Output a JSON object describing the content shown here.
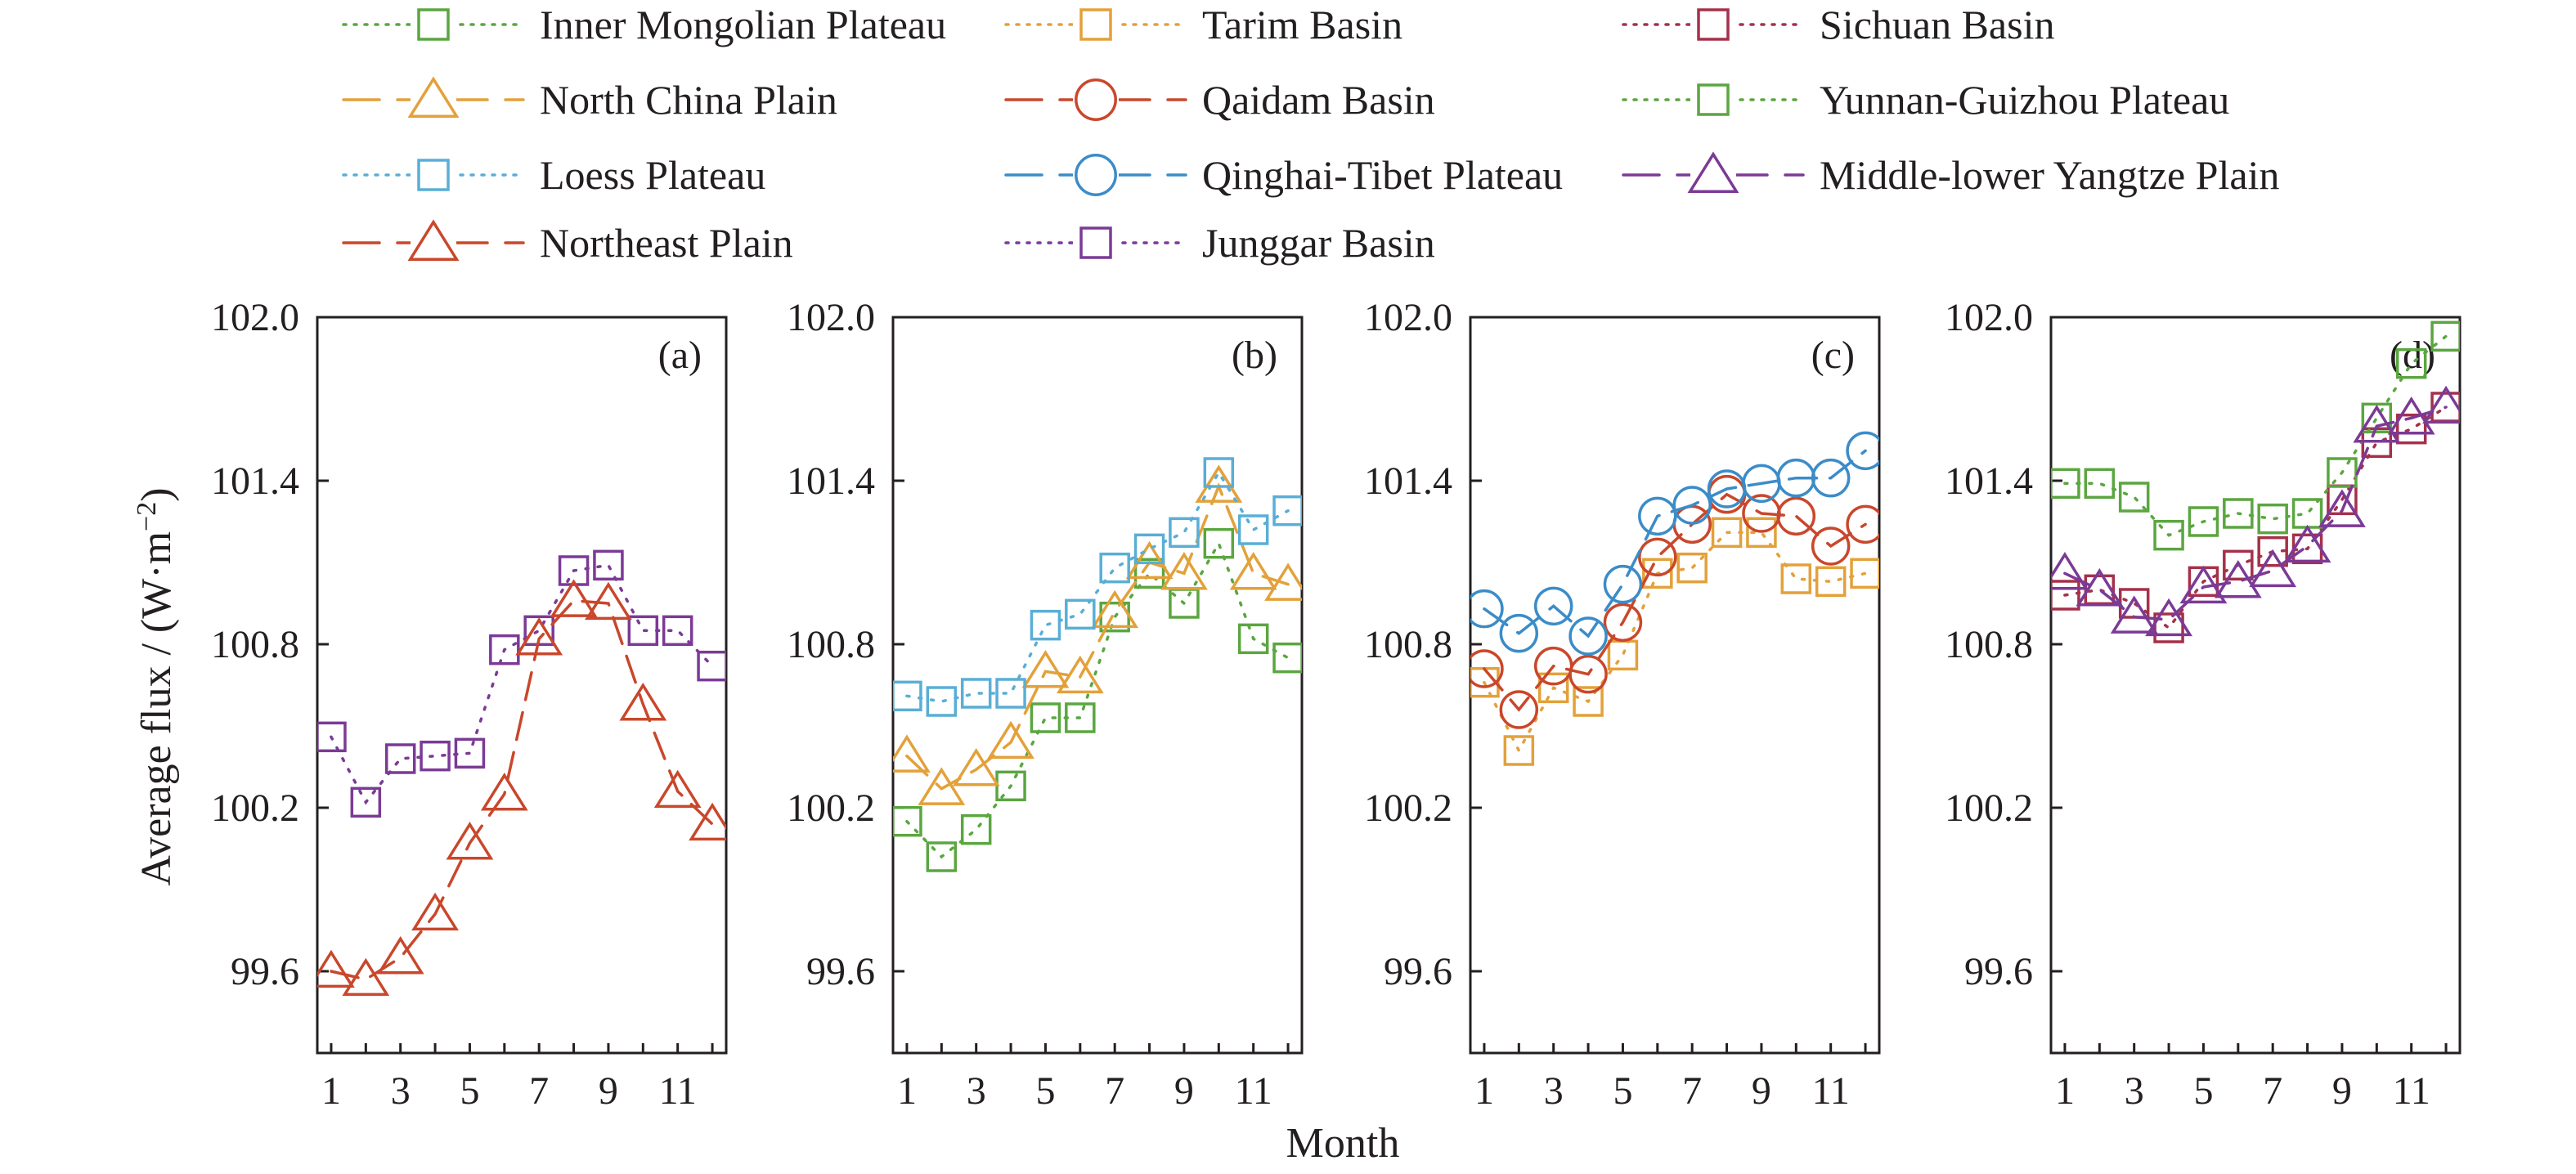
{
  "chart_data": {
    "type": "line",
    "ylabel_main": "Average flux / (W·m",
    "ylabel_exp": "−2",
    "ylabel_close": ")",
    "xlabel": "Month",
    "ylim": [
      99.3,
      102.0
    ],
    "xlim": [
      0.6,
      12.4
    ],
    "yticks": [
      "102.0",
      "101.4",
      "100.8",
      "100.2",
      "99.6"
    ],
    "xticks": [
      "1",
      "3",
      "5",
      "7",
      "9",
      "11"
    ],
    "panels": [
      {
        "label": "(a)",
        "series": [
          {
            "name": "Junggar Basin",
            "color": "#7b3a96",
            "marker": "square",
            "dash": "dot",
            "x": [
              1,
              2,
              3,
              4,
              5,
              6,
              7,
              8,
              9,
              10,
              11,
              12
            ],
            "y": [
              100.46,
              100.22,
              100.38,
              100.39,
              100.4,
              100.78,
              100.85,
              101.07,
              101.09,
              100.85,
              100.85,
              100.72
            ]
          },
          {
            "name": "Northeast Plain",
            "color": "#c9472b",
            "marker": "triangle",
            "dash": "dash",
            "x": [
              1,
              2,
              3,
              4,
              5,
              6,
              7,
              8,
              9,
              10,
              11,
              12
            ],
            "y": [
              99.6,
              99.57,
              99.65,
              99.81,
              100.07,
              100.25,
              100.82,
              100.96,
              100.95,
              100.58,
              100.26,
              100.14
            ]
          }
        ]
      },
      {
        "label": "(b)",
        "series": [
          {
            "name": "Inner Mongolian Plateau",
            "color": "#5aa640",
            "marker": "square",
            "dash": "dot",
            "x": [
              1,
              2,
              3,
              4,
              5,
              6,
              7,
              8,
              9,
              10,
              11,
              12
            ],
            "y": [
              100.15,
              100.02,
              100.12,
              100.28,
              100.53,
              100.53,
              100.9,
              101.06,
              100.95,
              101.17,
              100.82,
              100.75
            ]
          },
          {
            "name": "North China Plain",
            "color": "#e3a13a",
            "marker": "triangle",
            "dash": "dash",
            "x": [
              1,
              2,
              3,
              4,
              5,
              6,
              7,
              8,
              9,
              10,
              11,
              12
            ],
            "y": [
              100.39,
              100.27,
              100.34,
              100.44,
              100.7,
              100.68,
              100.92,
              101.1,
              101.06,
              101.38,
              101.06,
              101.02
            ]
          },
          {
            "name": "Loess Plateau",
            "color": "#5aaed6",
            "marker": "square",
            "dash": "dot",
            "x": [
              1,
              2,
              3,
              4,
              5,
              6,
              7,
              8,
              9,
              10,
              11,
              12
            ],
            "y": [
              100.61,
              100.59,
              100.62,
              100.62,
              100.87,
              100.91,
              101.08,
              101.15,
              101.21,
              101.43,
              101.22,
              101.29
            ]
          }
        ]
      },
      {
        "label": "(c)",
        "series": [
          {
            "name": "Tarim Basin",
            "color": "#e3a13a",
            "marker": "square",
            "dash": "dot",
            "x": [
              1,
              2,
              3,
              4,
              5,
              6,
              7,
              8,
              9,
              10,
              11,
              12
            ],
            "y": [
              100.66,
              100.41,
              100.64,
              100.59,
              100.76,
              101.06,
              101.08,
              101.21,
              101.21,
              101.04,
              101.03,
              101.06
            ]
          },
          {
            "name": "Qaidam Basin",
            "color": "#c9472b",
            "marker": "circle",
            "dash": "dash",
            "x": [
              1,
              2,
              3,
              4,
              5,
              6,
              7,
              8,
              9,
              10,
              11,
              12
            ],
            "y": [
              100.71,
              100.56,
              100.72,
              100.69,
              100.88,
              101.12,
              101.24,
              101.35,
              101.28,
              101.27,
              101.16,
              101.24
            ]
          },
          {
            "name": "Qinghai-Tibet Plateau",
            "color": "#3b8cc8",
            "marker": "circle",
            "dash": "dash",
            "x": [
              1,
              2,
              3,
              4,
              5,
              6,
              7,
              8,
              9,
              10,
              11,
              12
            ],
            "y": [
              100.93,
              100.84,
              100.94,
              100.83,
              101.02,
              101.27,
              101.31,
              101.37,
              101.39,
              101.41,
              101.41,
              101.51
            ]
          }
        ]
      },
      {
        "label": "(d)",
        "series": [
          {
            "name": "Sichuan Basin",
            "color": "#a5304a",
            "marker": "square",
            "dash": "dot",
            "x": [
              1,
              2,
              3,
              4,
              5,
              6,
              7,
              8,
              9,
              10,
              11,
              12
            ],
            "y": [
              100.98,
              101.0,
              100.95,
              100.86,
              101.03,
              101.09,
              101.14,
              101.15,
              101.33,
              101.54,
              101.59,
              101.67
            ]
          },
          {
            "name": "Yunnan-Guizhou Plateau",
            "color": "#5aa640",
            "marker": "square",
            "dash": "dot",
            "x": [
              1,
              2,
              3,
              4,
              5,
              6,
              7,
              8,
              9,
              10,
              11,
              12
            ],
            "y": [
              101.39,
              101.39,
              101.34,
              101.2,
              101.25,
              101.28,
              101.26,
              101.28,
              101.43,
              101.63,
              101.83,
              101.93
            ]
          },
          {
            "name": "Middle-lower Yangtze Plain",
            "color": "#7b3a96",
            "marker": "triangle",
            "dash": "dash",
            "x": [
              1,
              2,
              3,
              4,
              5,
              6,
              7,
              8,
              9,
              10,
              11,
              12
            ],
            "y": [
              101.06,
              101.0,
              100.9,
              100.89,
              101.01,
              101.03,
              101.07,
              101.16,
              101.29,
              101.6,
              101.63,
              101.67
            ]
          }
        ]
      }
    ],
    "legend": [
      {
        "name": "Inner Mongolian Plateau",
        "color": "#5aa640",
        "marker": "square",
        "dash": "dot"
      },
      {
        "name": "Tarim Basin",
        "color": "#e3a13a",
        "marker": "square",
        "dash": "dot"
      },
      {
        "name": "Sichuan Basin",
        "color": "#a5304a",
        "marker": "square",
        "dash": "dot"
      },
      {
        "name": "North China Plain",
        "color": "#e3a13a",
        "marker": "triangle",
        "dash": "dash"
      },
      {
        "name": "Qaidam Basin",
        "color": "#c9472b",
        "marker": "circle",
        "dash": "dash"
      },
      {
        "name": "Yunnan-Guizhou Plateau",
        "color": "#5aa640",
        "marker": "square",
        "dash": "dot"
      },
      {
        "name": "Loess Plateau",
        "color": "#5aaed6",
        "marker": "square",
        "dash": "dot"
      },
      {
        "name": "Qinghai-Tibet Plateau",
        "color": "#3b8cc8",
        "marker": "circle",
        "dash": "dash"
      },
      {
        "name": "Middle-lower Yangtze Plain",
        "color": "#7b3a96",
        "marker": "triangle",
        "dash": "dash"
      },
      {
        "name": "Northeast Plain",
        "color": "#c9472b",
        "marker": "triangle",
        "dash": "dash"
      },
      {
        "name": "Junggar Basin",
        "color": "#7b3a96",
        "marker": "square",
        "dash": "dot"
      }
    ],
    "legend_placement": "top",
    "grid": false
  }
}
